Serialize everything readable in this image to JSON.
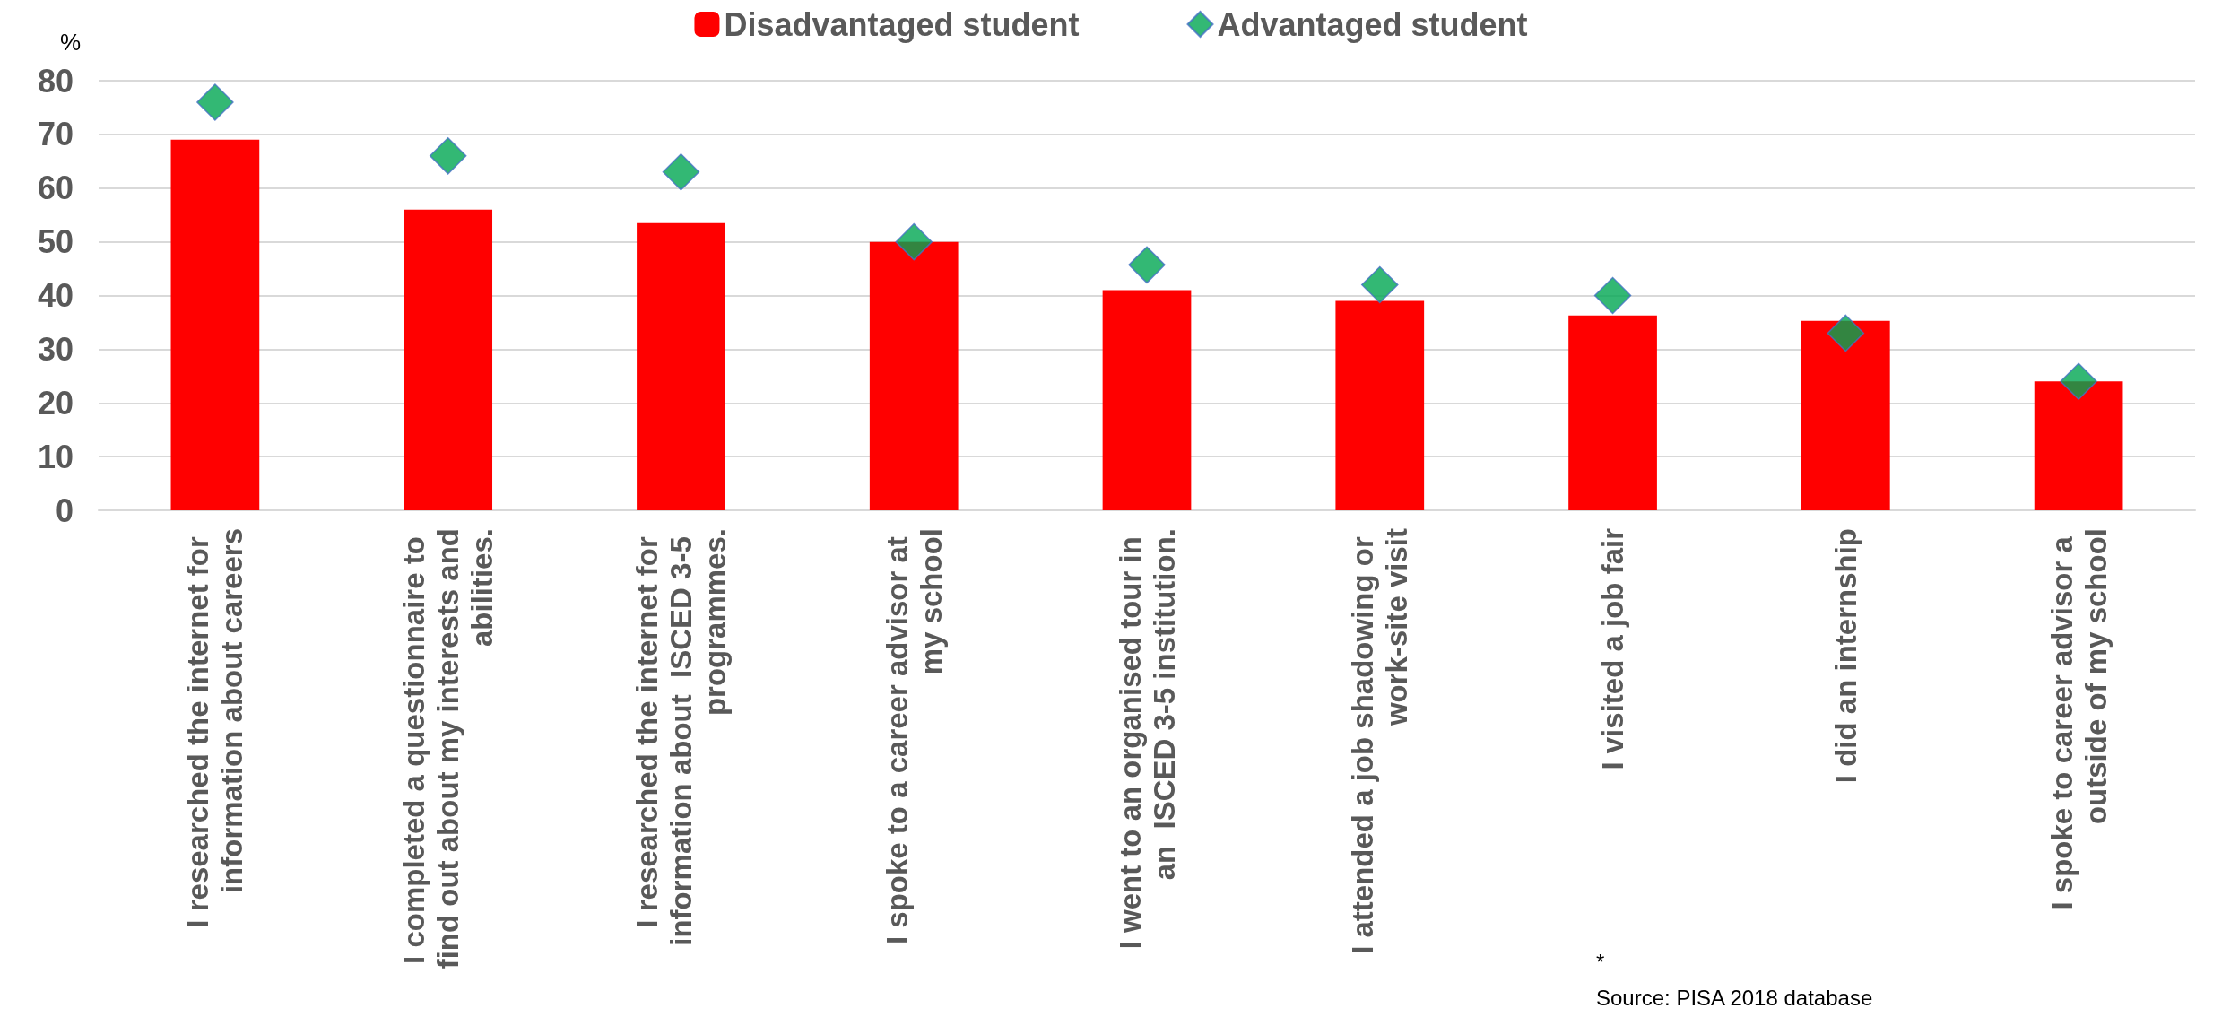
{
  "chart_data": {
    "type": "bar",
    "ylabel": "%",
    "categories": [
      "I researched the internet for information about careers",
      "I completed a questionnaire to find out about my interests and abilities.",
      "I researched the internet for information about  ISCED 3-5 programmes.",
      "I spoke to a career advisor at my school",
      "I went to an organised tour in an  ISCED 3-5 institution.",
      "I attended a job shadowing or work-site visit",
      "I visited a job fair",
      "I did an internship",
      "I spoke to career advisor a outside of my school"
    ],
    "series": [
      {
        "name": "Disadvantaged student",
        "color": "#ff0000",
        "values": [
          69,
          56,
          53.5,
          50,
          41,
          39,
          36.3,
          35.3,
          24
        ]
      },
      {
        "name": "Advantaged student",
        "type": "scatter",
        "marker": "diamond",
        "color": "#00a651",
        "values": [
          76,
          66,
          63,
          50,
          45.7,
          42,
          40,
          33,
          24
        ]
      }
    ],
    "ylim": [
      0,
      80
    ],
    "yticks": [
      0,
      10,
      20,
      30,
      40,
      50,
      60,
      70,
      80
    ],
    "grid": "y",
    "legend": "top",
    "annotations": [
      "*",
      "Source: PISA 2018 database"
    ]
  }
}
